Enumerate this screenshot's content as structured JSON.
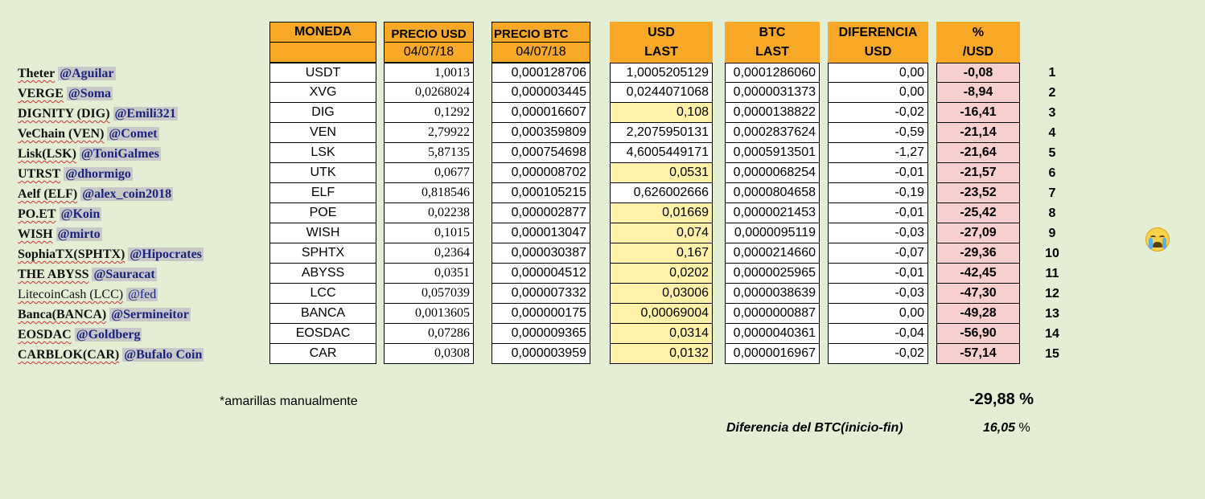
{
  "headers": {
    "moneda": "MONEDA",
    "precio_usd": "PRECIO USD",
    "precio_btc": "PRECIO BTC",
    "usd_last_1": "USD",
    "usd_last_2": "LAST",
    "btc_last_1": "BTC",
    "btc_last_2": "LAST",
    "diff_1": "DIFERENCIA",
    "diff_2": "USD",
    "pct_1": "%",
    "pct_2": "/USD",
    "date_usd": "04/07/18",
    "date_btc": "04/07/18"
  },
  "rows": [
    {
      "coin": "Theter",
      "user": "@Aguilar",
      "sym": "USDT",
      "usd": "1,0013",
      "btc": "0,000128706",
      "usd_last": "1,0005205129",
      "btc_last": "0,0001286060",
      "diff": "0,00",
      "pct": "-0,08",
      "idx": "1",
      "yellow": false
    },
    {
      "coin": "VERGE",
      "user": "@Soma",
      "sym": "XVG",
      "usd": "0,0268024",
      "btc": "0,000003445",
      "usd_last": "0,0244071068",
      "btc_last": "0,0000031373",
      "diff": "0,00",
      "pct": "-8,94",
      "idx": "2",
      "yellow": false
    },
    {
      "coin": "DIGNITY (DIG)",
      "user": "@Emili321",
      "sym": "DIG",
      "usd": "0,1292",
      "btc": "0,000016607",
      "usd_last": "0,108",
      "btc_last": "0,0000138822",
      "diff": "-0,02",
      "pct": "-16,41",
      "idx": "3",
      "yellow": true
    },
    {
      "coin": "VeChain (VEN)",
      "user": "@Comet",
      "sym": "VEN",
      "usd": "2,79922",
      "btc": "0,000359809",
      "usd_last": "2,2075950131",
      "btc_last": "0,0002837624",
      "diff": "-0,59",
      "pct": "-21,14",
      "idx": "4",
      "yellow": false
    },
    {
      "coin": "Lisk(LSK)",
      "user": "@ToniGalmes",
      "sym": "LSK",
      "usd": "5,87135",
      "btc": "0,000754698",
      "usd_last": "4,6005449171",
      "btc_last": "0,0005913501",
      "diff": "-1,27",
      "pct": "-21,64",
      "idx": "5",
      "yellow": false
    },
    {
      "coin": "UTRST",
      "user": "@dhormigo",
      "sym": "UTK",
      "usd": "0,0677",
      "btc": "0,000008702",
      "usd_last": "0,0531",
      "btc_last": "0,0000068254",
      "diff": "-0,01",
      "pct": "-21,57",
      "idx": "6",
      "yellow": true
    },
    {
      "coin": "Aelf (ELF)",
      "user": "@alex_coin2018",
      "sym": "ELF",
      "usd": "0,818546",
      "btc": "0,000105215",
      "usd_last": "0,626002666",
      "btc_last": "0,0000804658",
      "diff": "-0,19",
      "pct": "-23,52",
      "idx": "7",
      "yellow": false
    },
    {
      "coin": "PO.ET",
      "user": "@Koin",
      "sym": "POE",
      "usd": "0,02238",
      "btc": "0,000002877",
      "usd_last": "0,01669",
      "btc_last": "0,0000021453",
      "diff": "-0,01",
      "pct": "-25,42",
      "idx": "8",
      "yellow": true
    },
    {
      "coin": "WISH",
      "user": "@mirto",
      "sym": "WISH",
      "usd": "0,1015",
      "btc": "0,000013047",
      "usd_last": "0,074",
      "btc_last": "0,0000095119",
      "diff": "-0,03",
      "pct": "-27,09",
      "idx": "9",
      "yellow": true
    },
    {
      "coin": "SophiaTX(SPHTX)",
      "user": "@Hipocrates",
      "sym": "SPHTX",
      "usd": "0,2364",
      "btc": "0,000030387",
      "usd_last": "0,167",
      "btc_last": "0,0000214660",
      "diff": "-0,07",
      "pct": "-29,36",
      "idx": "10",
      "yellow": true
    },
    {
      "coin": "THE ABYSS",
      "user": "@Sauracat",
      "sym": "ABYSS",
      "usd": "0,0351",
      "btc": "0,000004512",
      "usd_last": "0,0202",
      "btc_last": "0,0000025965",
      "diff": "-0,01",
      "pct": "-42,45",
      "idx": "11",
      "yellow": true
    },
    {
      "coin": "LitecoinCash (LCC)",
      "user": "@fed",
      "sym": "LCC",
      "usd": "0,057039",
      "btc": "0,000007332",
      "usd_last": "0,03006",
      "btc_last": "0,0000038639",
      "diff": "-0,03",
      "pct": "-47,30",
      "idx": "12",
      "yellow": true
    },
    {
      "coin": "Banca(BANCA)",
      "user": "@Sermineitor",
      "sym": "BANCA",
      "usd": "0,0013605",
      "btc": "0,000000175",
      "usd_last": "0,00069004",
      "btc_last": "0,0000000887",
      "diff": "0,00",
      "pct": "-49,28",
      "idx": "13",
      "yellow": true
    },
    {
      "coin": "EOSDAC",
      "user": "@Goldberg",
      "sym": "EOSDAC",
      "usd": "0,07286",
      "btc": "0,000009365",
      "usd_last": "0,0314",
      "btc_last": "0,0000040361",
      "diff": "-0,04",
      "pct": "-56,90",
      "idx": "14",
      "yellow": true
    },
    {
      "coin": "CARBLOK(CAR)",
      "user": "@Bufalo Coin",
      "sym": "CAR",
      "usd": "0,0308",
      "btc": "0,000003959",
      "usd_last": "0,0132",
      "btc_last": "0,0000016967",
      "diff": "-0,02",
      "pct": "-57,14",
      "idx": "15",
      "yellow": true
    }
  ],
  "footer": {
    "note": "*amarillas manualmente",
    "total_pct": "-29,88",
    "total_pct_sign": "%",
    "btc_diff_label": "Diferencia del BTC(inicio-fin)",
    "btc_diff_value": "16,05",
    "btc_diff_sign": "%"
  },
  "icons": {
    "crying_face": "crying-face-icon"
  }
}
